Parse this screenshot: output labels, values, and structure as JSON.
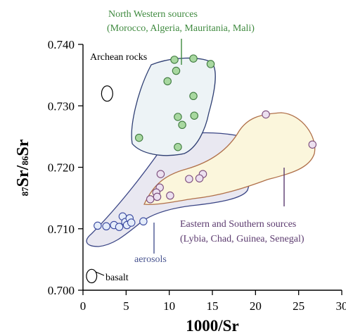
{
  "colors": {
    "nw": "#3f8a3f",
    "nw_fill": "#edf3f6",
    "nw_stroke": "#2f3f73",
    "es": "#5b3a6e",
    "es_fill": "#fbf6dc",
    "es_stroke": "#b0704a",
    "aero": "#4a5590",
    "aero_fill": "#e9e8f1",
    "aero_stroke": "#3a4585",
    "pt_green": "#a8d8a0",
    "pt_green_stroke": "#3f7a3f",
    "pt_purple": "#ece0f0",
    "pt_purple_stroke": "#7a4a7a",
    "pt_blue": "#e4ecfa",
    "pt_blue_stroke": "#3a4aa0"
  },
  "chart_data": {
    "type": "scatter",
    "xlabel": "1000/Sr",
    "ylabel": "87Sr/86Sr",
    "xlim": [
      0,
      30
    ],
    "ylim": [
      0.7,
      0.74
    ],
    "x_ticks": [
      0,
      5,
      10,
      15,
      20,
      25,
      30
    ],
    "y_ticks": [
      {
        "value": 0.7,
        "label": "0.700"
      },
      {
        "value": 0.71,
        "label": "0.710"
      },
      {
        "value": 0.72,
        "label": "0.720"
      },
      {
        "value": 0.73,
        "label": "0.730"
      },
      {
        "value": 0.74,
        "label": "0.740"
      }
    ],
    "grid": false,
    "series": [
      {
        "key": "north_western",
        "points": [
          {
            "x": 10.6,
            "y": 0.7375
          },
          {
            "x": 12.8,
            "y": 0.7377
          },
          {
            "x": 14.8,
            "y": 0.7368
          },
          {
            "x": 10.8,
            "y": 0.7357
          },
          {
            "x": 9.8,
            "y": 0.734
          },
          {
            "x": 12.8,
            "y": 0.7316
          },
          {
            "x": 11.0,
            "y": 0.7282
          },
          {
            "x": 12.9,
            "y": 0.7284
          },
          {
            "x": 11.5,
            "y": 0.7269
          },
          {
            "x": 6.5,
            "y": 0.7248
          },
          {
            "x": 11.0,
            "y": 0.7233
          }
        ]
      },
      {
        "key": "eastern_southern",
        "points": [
          {
            "x": 21.2,
            "y": 0.7286
          },
          {
            "x": 26.6,
            "y": 0.7237
          },
          {
            "x": 9.0,
            "y": 0.7189
          },
          {
            "x": 13.9,
            "y": 0.7189
          },
          {
            "x": 12.3,
            "y": 0.7181
          },
          {
            "x": 13.5,
            "y": 0.7182
          },
          {
            "x": 8.9,
            "y": 0.7167
          },
          {
            "x": 8.5,
            "y": 0.7159
          },
          {
            "x": 10.1,
            "y": 0.7154
          },
          {
            "x": 8.6,
            "y": 0.7152
          },
          {
            "x": 7.8,
            "y": 0.7148
          }
        ]
      },
      {
        "key": "aerosols",
        "points": [
          {
            "x": 1.7,
            "y": 0.7105
          },
          {
            "x": 2.7,
            "y": 0.7104
          },
          {
            "x": 3.6,
            "y": 0.7106
          },
          {
            "x": 4.2,
            "y": 0.7103
          },
          {
            "x": 4.6,
            "y": 0.712
          },
          {
            "x": 4.9,
            "y": 0.7111
          },
          {
            "x": 5.1,
            "y": 0.7106
          },
          {
            "x": 5.4,
            "y": 0.7117
          },
          {
            "x": 5.6,
            "y": 0.711
          },
          {
            "x": 7.0,
            "y": 0.7112
          }
        ]
      }
    ],
    "regions": [
      {
        "key": "archean",
        "cx": 2.8,
        "cy": 0.732,
        "rx": 0.65,
        "ry": 0.00125
      },
      {
        "key": "basalt",
        "cx": 1.0,
        "cy": 0.7023,
        "rx": 0.6,
        "ry": 0.0011
      }
    ],
    "annotations": {
      "nw_title": "North Western sources",
      "nw_sub": "(Morocco, Algeria, Mauritania, Mali)",
      "es_title": "Eastern and Southern sources",
      "es_sub": "(Lybia, Chad, Guinea, Senegal)",
      "aerosols": "aerosols",
      "archean": "Archean rocks",
      "basalt": "basalt"
    }
  }
}
